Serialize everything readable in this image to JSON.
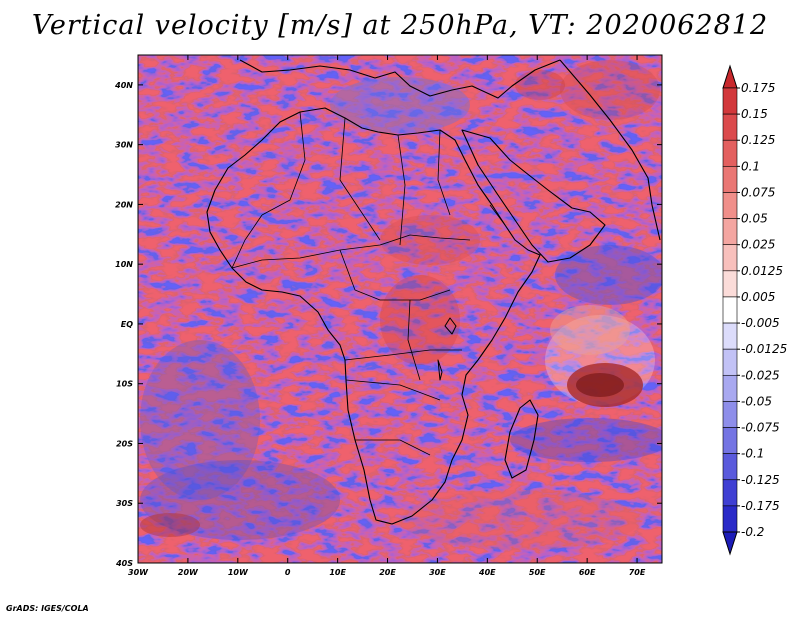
{
  "title": "Vertical velocity [m/s] at 250hPa, VT: 2020062812",
  "credit": "GrADS: IGES/COLA",
  "map": {
    "lon_range": [
      -30,
      75
    ],
    "lat_range": [
      -40,
      45
    ],
    "lon_ticks": [
      {
        "lon": -30,
        "label": "30W"
      },
      {
        "lon": -20,
        "label": "20W"
      },
      {
        "lon": -10,
        "label": "10W"
      },
      {
        "lon": 0,
        "label": "0"
      },
      {
        "lon": 10,
        "label": "10E"
      },
      {
        "lon": 20,
        "label": "20E"
      },
      {
        "lon": 30,
        "label": "30E"
      },
      {
        "lon": 40,
        "label": "40E"
      },
      {
        "lon": 50,
        "label": "50E"
      },
      {
        "lon": 60,
        "label": "60E"
      },
      {
        "lon": 70,
        "label": "70E"
      }
    ],
    "lat_ticks": [
      {
        "lat": 40,
        "label": "40N"
      },
      {
        "lat": 30,
        "label": "30N"
      },
      {
        "lat": 20,
        "label": "20N"
      },
      {
        "lat": 10,
        "label": "10N"
      },
      {
        "lat": 0,
        "label": "EQ"
      },
      {
        "lat": -10,
        "label": "10S"
      },
      {
        "lat": -20,
        "label": "20S"
      },
      {
        "lat": -30,
        "label": "30S"
      },
      {
        "lat": -40,
        "label": "40S"
      }
    ]
  },
  "colorbar": {
    "labels": [
      "0.175",
      "0.15",
      "0.125",
      "0.1",
      "0.075",
      "0.05",
      "0.025",
      "0.0125",
      "0.005",
      "-0.005",
      "-0.0125",
      "-0.025",
      "-0.05",
      "-0.075",
      "-0.1",
      "-0.125",
      "-0.175",
      "-0.2"
    ],
    "colors": [
      "#c8282c",
      "#d2383b",
      "#db4a4c",
      "#e3605f",
      "#ea7774",
      "#f08f8a",
      "#f4a6a1",
      "#f8c0bc",
      "#fbdcd9",
      "#ffffff",
      "#dcdcfb",
      "#c2c2f6",
      "#a8a8f0",
      "#8e8eea",
      "#7474e3",
      "#5a5adc",
      "#3f3fd3",
      "#2a2ac8",
      "#1c1cb8"
    ]
  }
}
